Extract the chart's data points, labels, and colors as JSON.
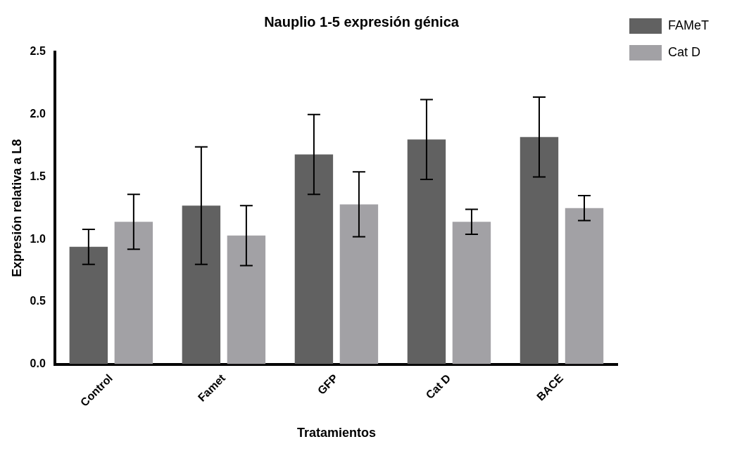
{
  "chart_data": {
    "type": "bar",
    "title": "Nauplio 1-5 expresión génica",
    "xlabel": "Tratamientos",
    "ylabel": "Expresión relativa a L8",
    "categories": [
      "Control",
      "Famet",
      "GFP",
      "Cat D",
      "BACE"
    ],
    "series": [
      {
        "name": "FAMeT",
        "color": "#616161",
        "values": [
          0.94,
          1.27,
          1.68,
          1.8,
          1.82
        ],
        "errors": [
          0.14,
          0.47,
          0.32,
          0.32,
          0.32
        ]
      },
      {
        "name": "Cat D",
        "color": "#a2a1a5",
        "values": [
          1.14,
          1.03,
          1.28,
          1.14,
          1.25
        ],
        "errors": [
          0.22,
          0.24,
          0.26,
          0.1,
          0.1
        ]
      }
    ],
    "ylim": [
      0,
      2.5
    ],
    "yticks": [
      {
        "value": 0,
        "label": "0.0"
      },
      {
        "value": 0.5,
        "label": "0.5"
      },
      {
        "value": 1,
        "label": "1.0"
      },
      {
        "value": 1.5,
        "label": "1.5"
      },
      {
        "value": 2,
        "label": "2.0"
      },
      {
        "value": 2.5,
        "label": "2.5"
      }
    ],
    "grid": false,
    "legend": "right"
  }
}
